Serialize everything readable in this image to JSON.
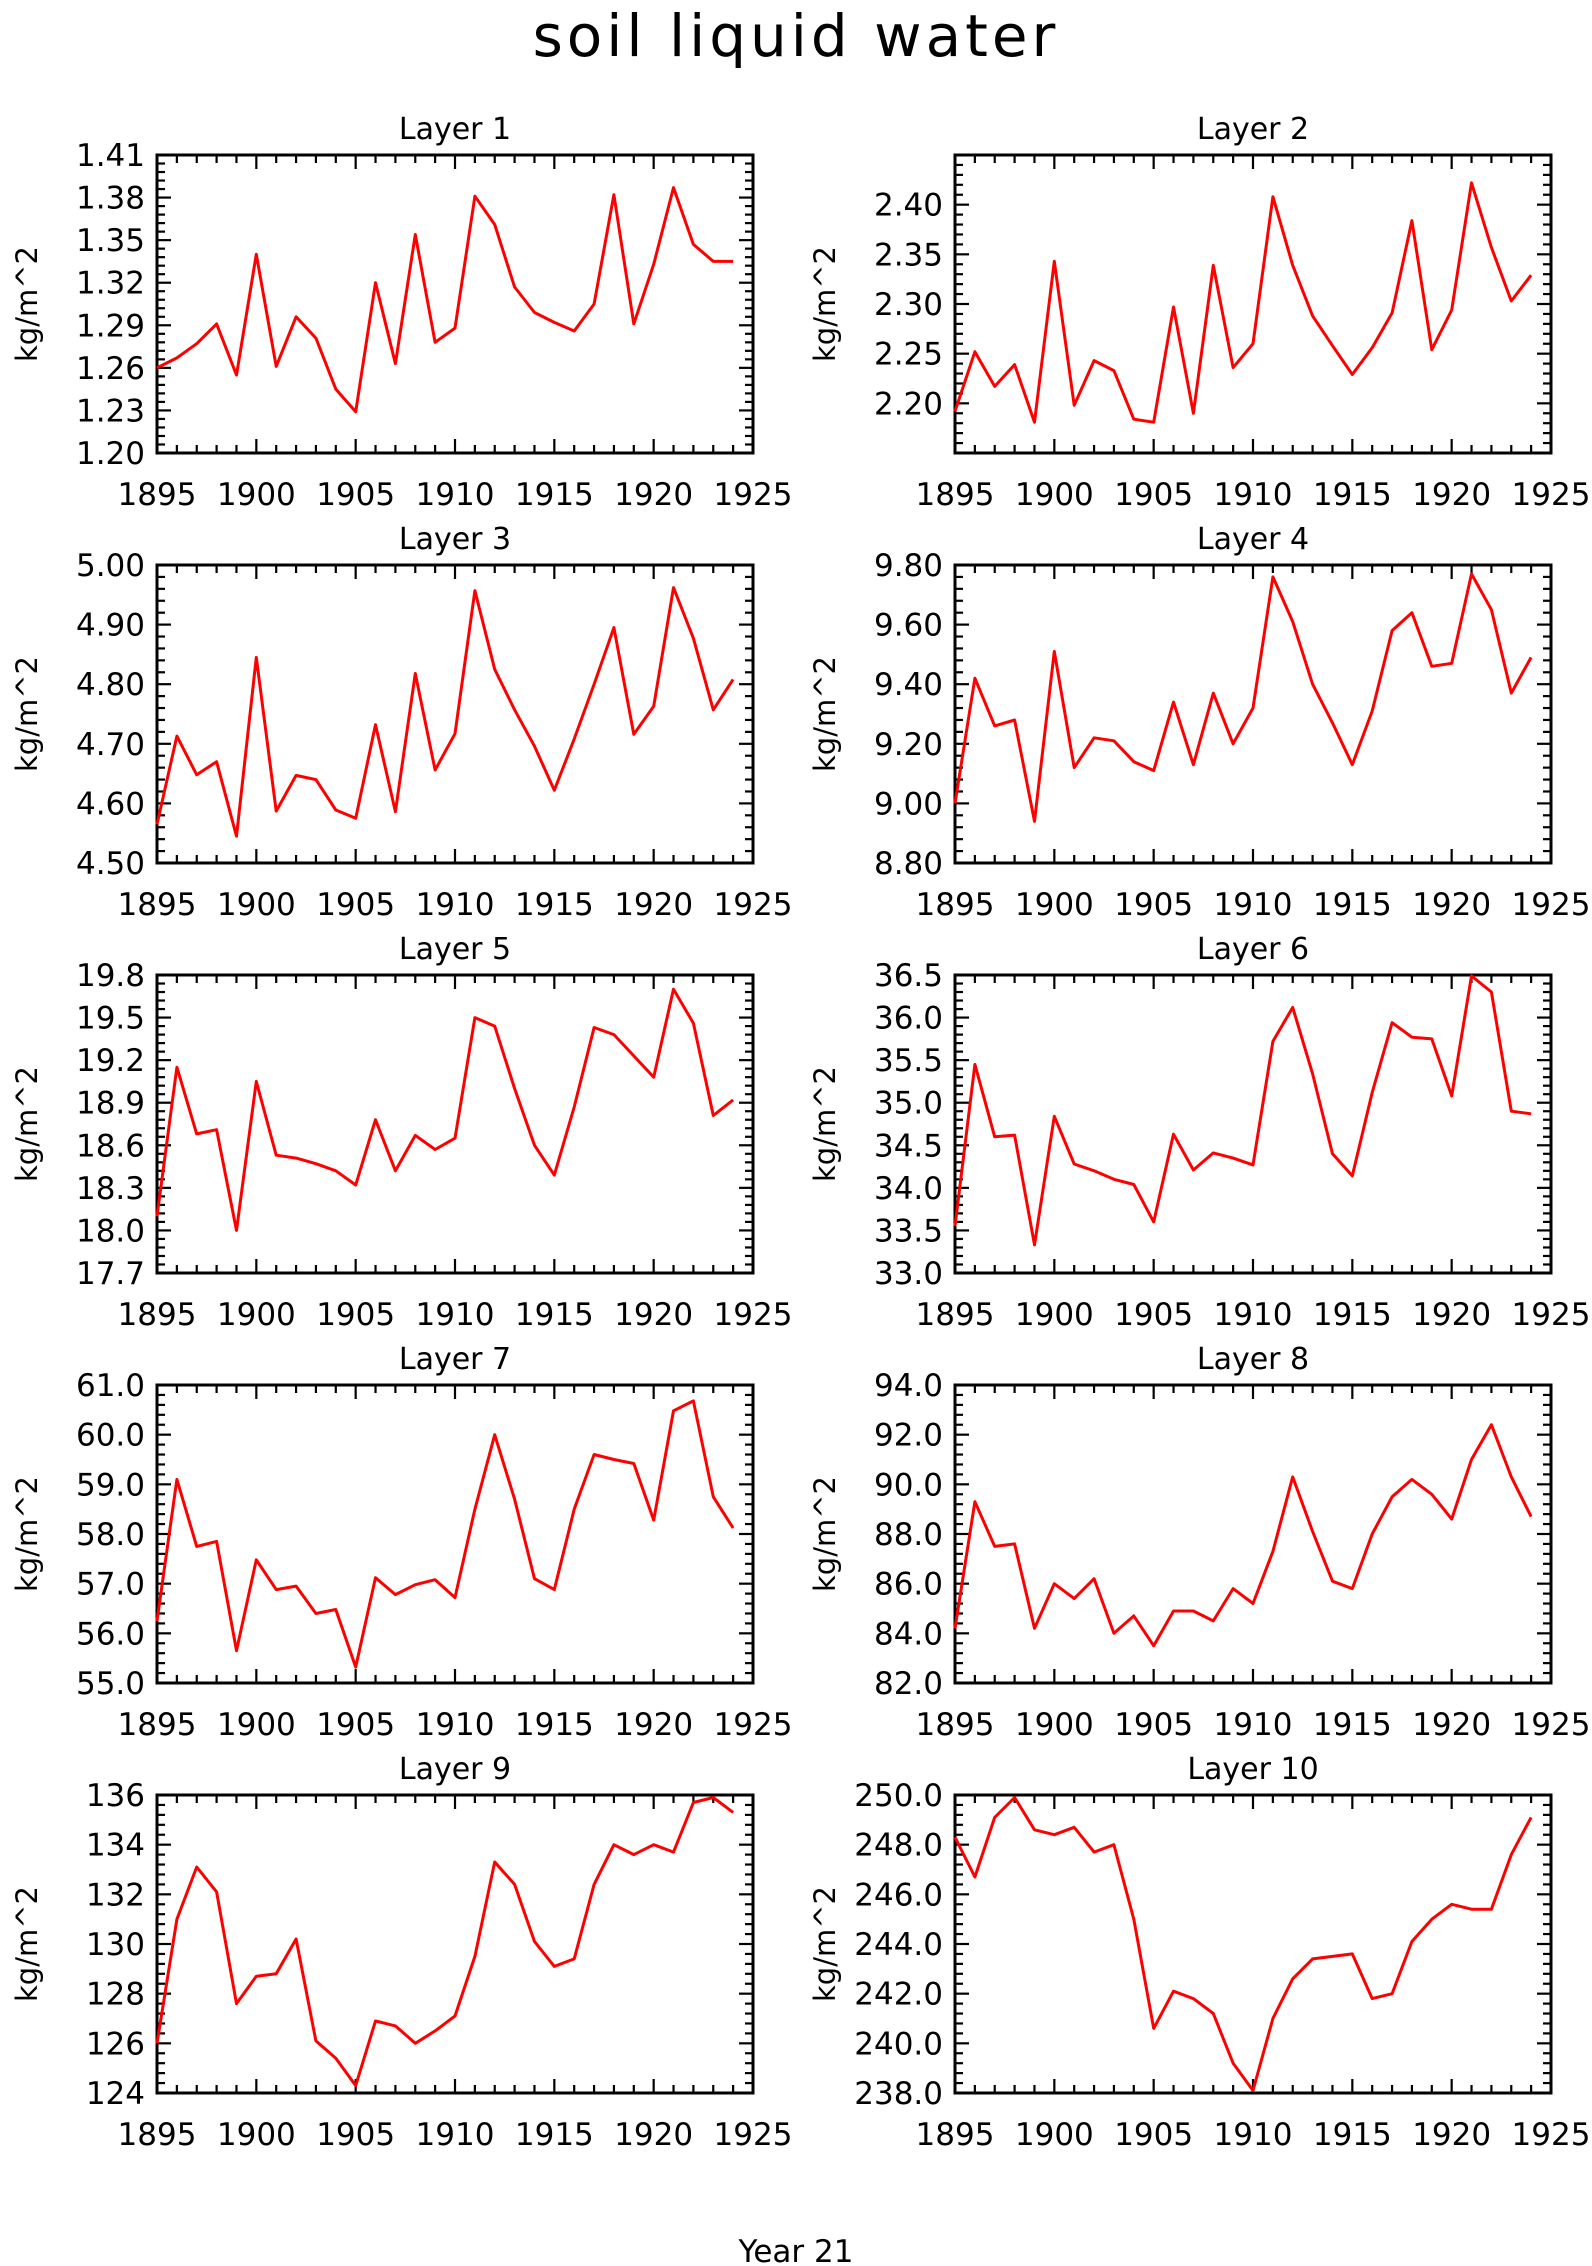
{
  "figure": {
    "title": "soil liquid water",
    "footer": "Year 21"
  },
  "chart_data": [
    {
      "type": "line",
      "title": "Layer 1",
      "ylabel": "kg/m^2",
      "x": [
        1895,
        1896,
        1897,
        1898,
        1899,
        1900,
        1901,
        1902,
        1903,
        1904,
        1905,
        1906,
        1907,
        1908,
        1909,
        1910,
        1911,
        1912,
        1913,
        1914,
        1915,
        1916,
        1917,
        1918,
        1919,
        1920,
        1921,
        1922,
        1923,
        1924
      ],
      "values": [
        1.26,
        1.267,
        1.277,
        1.291,
        1.255,
        1.34,
        1.261,
        1.296,
        1.281,
        1.245,
        1.229,
        1.32,
        1.263,
        1.354,
        1.278,
        1.288,
        1.381,
        1.361,
        1.317,
        1.299,
        1.292,
        1.286,
        1.305,
        1.382,
        1.291,
        1.333,
        1.387,
        1.347,
        1.335,
        1.335
      ],
      "xlim": [
        1895,
        1925
      ],
      "ylim": [
        1.2,
        1.41
      ],
      "xticks": [
        "1895",
        "1900",
        "1905",
        "1910",
        "1915",
        "1920",
        "1925"
      ],
      "yticks": [
        "1.20",
        "1.23",
        "1.26",
        "1.29",
        "1.32",
        "1.35",
        "1.38",
        "1.41"
      ]
    },
    {
      "type": "line",
      "title": "Layer 2",
      "ylabel": "kg/m^2",
      "x": [
        1895,
        1896,
        1897,
        1898,
        1899,
        1900,
        1901,
        1902,
        1903,
        1904,
        1905,
        1906,
        1907,
        1908,
        1909,
        1910,
        1911,
        1912,
        1913,
        1914,
        1915,
        1916,
        1917,
        1918,
        1919,
        1920,
        1921,
        1922,
        1923,
        1924
      ],
      "values": [
        2.192,
        2.252,
        2.217,
        2.239,
        2.181,
        2.343,
        2.198,
        2.243,
        2.233,
        2.184,
        2.181,
        2.297,
        2.19,
        2.339,
        2.236,
        2.26,
        2.408,
        2.339,
        2.288,
        2.258,
        2.229,
        2.256,
        2.291,
        2.384,
        2.254,
        2.294,
        2.422,
        2.357,
        2.303,
        2.329
      ],
      "xlim": [
        1895,
        1925
      ],
      "ylim": [
        2.15,
        2.45
      ],
      "xticks": [
        "1895",
        "1900",
        "1905",
        "1910",
        "1915",
        "1920",
        "1925"
      ],
      "yticks": [
        "2.20",
        "2.25",
        "2.30",
        "2.35",
        "2.40"
      ]
    },
    {
      "type": "line",
      "title": "Layer 3",
      "ylabel": "kg/m^2",
      "x": [
        1895,
        1896,
        1897,
        1898,
        1899,
        1900,
        1901,
        1902,
        1903,
        1904,
        1905,
        1906,
        1907,
        1908,
        1909,
        1910,
        1911,
        1912,
        1913,
        1914,
        1915,
        1916,
        1917,
        1918,
        1919,
        1920,
        1921,
        1922,
        1923,
        1924
      ],
      "values": [
        4.565,
        4.713,
        4.648,
        4.67,
        4.545,
        4.845,
        4.587,
        4.647,
        4.64,
        4.589,
        4.575,
        4.732,
        4.586,
        4.818,
        4.656,
        4.717,
        4.957,
        4.825,
        4.757,
        4.696,
        4.622,
        4.708,
        4.8,
        4.895,
        4.716,
        4.763,
        4.962,
        4.877,
        4.757,
        4.808
      ],
      "xlim": [
        1895,
        1925
      ],
      "ylim": [
        4.5,
        5.0
      ],
      "xticks": [
        "1895",
        "1900",
        "1905",
        "1910",
        "1915",
        "1920",
        "1925"
      ],
      "yticks": [
        "4.50",
        "4.60",
        "4.70",
        "4.80",
        "4.90",
        "5.00"
      ]
    },
    {
      "type": "line",
      "title": "Layer 4",
      "ylabel": "kg/m^2",
      "x": [
        1895,
        1896,
        1897,
        1898,
        1899,
        1900,
        1901,
        1902,
        1903,
        1904,
        1905,
        1906,
        1907,
        1908,
        1909,
        1910,
        1911,
        1912,
        1913,
        1914,
        1915,
        1916,
        1917,
        1918,
        1919,
        1920,
        1921,
        1922,
        1923,
        1924
      ],
      "values": [
        9.0,
        9.42,
        9.26,
        9.28,
        8.94,
        9.51,
        9.12,
        9.22,
        9.21,
        9.14,
        9.11,
        9.34,
        9.13,
        9.37,
        9.2,
        9.32,
        9.76,
        9.61,
        9.4,
        9.27,
        9.13,
        9.31,
        9.58,
        9.64,
        9.46,
        9.47,
        9.77,
        9.65,
        9.37,
        9.49
      ],
      "xlim": [
        1895,
        1925
      ],
      "ylim": [
        8.8,
        9.8
      ],
      "xticks": [
        "1895",
        "1900",
        "1905",
        "1910",
        "1915",
        "1920",
        "1925"
      ],
      "yticks": [
        "8.80",
        "9.00",
        "9.20",
        "9.40",
        "9.60",
        "9.80"
      ]
    },
    {
      "type": "line",
      "title": "Layer 5",
      "ylabel": "kg/m^2",
      "x": [
        1895,
        1896,
        1897,
        1898,
        1899,
        1900,
        1901,
        1902,
        1903,
        1904,
        1905,
        1906,
        1907,
        1908,
        1909,
        1910,
        1911,
        1912,
        1913,
        1914,
        1915,
        1916,
        1917,
        1918,
        1919,
        1920,
        1921,
        1922,
        1923,
        1924
      ],
      "values": [
        18.1,
        19.15,
        18.68,
        18.71,
        18.0,
        19.05,
        18.53,
        18.51,
        18.47,
        18.42,
        18.32,
        18.78,
        18.42,
        18.67,
        18.57,
        18.65,
        19.5,
        19.44,
        19.0,
        18.6,
        18.39,
        18.87,
        19.43,
        19.38,
        19.23,
        19.08,
        19.7,
        19.46,
        18.81,
        18.92
      ],
      "xlim": [
        1895,
        1925
      ],
      "ylim": [
        17.7,
        19.8
      ],
      "xticks": [
        "1895",
        "1900",
        "1905",
        "1910",
        "1915",
        "1920",
        "1925"
      ],
      "yticks": [
        "17.7",
        "18.0",
        "18.3",
        "18.6",
        "18.9",
        "19.2",
        "19.5",
        "19.8"
      ]
    },
    {
      "type": "line",
      "title": "Layer 6",
      "ylabel": "kg/m^2",
      "x": [
        1895,
        1896,
        1897,
        1898,
        1899,
        1900,
        1901,
        1902,
        1903,
        1904,
        1905,
        1906,
        1907,
        1908,
        1909,
        1910,
        1911,
        1912,
        1913,
        1914,
        1915,
        1916,
        1917,
        1918,
        1919,
        1920,
        1921,
        1922,
        1923,
        1924
      ],
      "values": [
        33.55,
        35.45,
        34.6,
        34.62,
        33.33,
        34.84,
        34.28,
        34.2,
        34.1,
        34.04,
        33.6,
        34.63,
        34.21,
        34.41,
        34.35,
        34.27,
        35.72,
        36.12,
        35.34,
        34.4,
        34.14,
        35.12,
        35.94,
        35.77,
        35.75,
        35.08,
        36.49,
        36.3,
        34.9,
        34.87
      ],
      "xlim": [
        1895,
        1925
      ],
      "ylim": [
        33.0,
        36.5
      ],
      "xticks": [
        "1895",
        "1900",
        "1905",
        "1910",
        "1915",
        "1920",
        "1925"
      ],
      "yticks": [
        "33.0",
        "33.5",
        "34.0",
        "34.5",
        "35.0",
        "35.5",
        "36.0",
        "36.5"
      ]
    },
    {
      "type": "line",
      "title": "Layer 7",
      "ylabel": "kg/m^2",
      "x": [
        1895,
        1896,
        1897,
        1898,
        1899,
        1900,
        1901,
        1902,
        1903,
        1904,
        1905,
        1906,
        1907,
        1908,
        1909,
        1910,
        1911,
        1912,
        1913,
        1914,
        1915,
        1916,
        1917,
        1918,
        1919,
        1920,
        1921,
        1922,
        1923,
        1924
      ],
      "values": [
        56.25,
        59.1,
        57.75,
        57.85,
        55.65,
        57.48,
        56.88,
        56.95,
        56.4,
        56.48,
        55.32,
        57.12,
        56.78,
        56.98,
        57.08,
        56.72,
        58.5,
        60.0,
        58.7,
        57.1,
        56.88,
        58.5,
        59.6,
        59.5,
        59.42,
        58.28,
        60.48,
        60.68,
        58.75,
        58.12
      ],
      "xlim": [
        1895,
        1925
      ],
      "ylim": [
        55.0,
        61.0
      ],
      "xticks": [
        "1895",
        "1900",
        "1905",
        "1910",
        "1915",
        "1920",
        "1925"
      ],
      "yticks": [
        "55.0",
        "56.0",
        "57.0",
        "58.0",
        "59.0",
        "60.0",
        "61.0"
      ]
    },
    {
      "type": "line",
      "title": "Layer 8",
      "ylabel": "kg/m^2",
      "x": [
        1895,
        1896,
        1897,
        1898,
        1899,
        1900,
        1901,
        1902,
        1903,
        1904,
        1905,
        1906,
        1907,
        1908,
        1909,
        1910,
        1911,
        1912,
        1913,
        1914,
        1915,
        1916,
        1917,
        1918,
        1919,
        1920,
        1921,
        1922,
        1923,
        1924
      ],
      "values": [
        84.2,
        89.3,
        87.5,
        87.6,
        84.2,
        86.0,
        85.4,
        86.2,
        84.0,
        84.7,
        83.5,
        84.9,
        84.9,
        84.5,
        85.8,
        85.2,
        87.3,
        90.3,
        88.1,
        86.1,
        85.8,
        88.0,
        89.5,
        90.2,
        89.6,
        88.6,
        91.0,
        92.4,
        90.3,
        88.7
      ],
      "xlim": [
        1895,
        1925
      ],
      "ylim": [
        82.0,
        94.0
      ],
      "xticks": [
        "1895",
        "1900",
        "1905",
        "1910",
        "1915",
        "1920",
        "1925"
      ],
      "yticks": [
        "82.0",
        "84.0",
        "86.0",
        "88.0",
        "90.0",
        "92.0",
        "94.0"
      ]
    },
    {
      "type": "line",
      "title": "Layer 9",
      "ylabel": "kg/m^2",
      "x": [
        1895,
        1896,
        1897,
        1898,
        1899,
        1900,
        1901,
        1902,
        1903,
        1904,
        1905,
        1906,
        1907,
        1908,
        1909,
        1910,
        1911,
        1912,
        1913,
        1914,
        1915,
        1916,
        1917,
        1918,
        1919,
        1920,
        1921,
        1922,
        1923,
        1924
      ],
      "values": [
        126.0,
        131.0,
        133.1,
        132.1,
        127.6,
        128.7,
        128.8,
        130.2,
        126.1,
        125.4,
        124.3,
        126.9,
        126.7,
        126.0,
        126.5,
        127.1,
        129.5,
        133.3,
        132.4,
        130.1,
        129.1,
        129.4,
        132.4,
        134.0,
        133.6,
        134.0,
        133.7,
        135.7,
        135.9,
        135.3
      ],
      "xlim": [
        1895,
        1925
      ],
      "ylim": [
        124,
        136
      ],
      "xticks": [
        "1895",
        "1900",
        "1905",
        "1910",
        "1915",
        "1920",
        "1925"
      ],
      "yticks": [
        "124",
        "126",
        "128",
        "130",
        "132",
        "134",
        "136"
      ]
    },
    {
      "type": "line",
      "title": "Layer 10",
      "ylabel": "kg/m^2",
      "x": [
        1895,
        1896,
        1897,
        1898,
        1899,
        1900,
        1901,
        1902,
        1903,
        1904,
        1905,
        1906,
        1907,
        1908,
        1909,
        1910,
        1911,
        1912,
        1913,
        1914,
        1915,
        1916,
        1917,
        1918,
        1919,
        1920,
        1921,
        1922,
        1923,
        1924
      ],
      "values": [
        248.3,
        246.7,
        249.1,
        249.9,
        248.6,
        248.4,
        248.7,
        247.7,
        248.0,
        245.0,
        240.6,
        242.1,
        241.8,
        241.2,
        239.2,
        238.1,
        241.0,
        242.6,
        243.4,
        243.5,
        243.6,
        241.8,
        242.0,
        244.1,
        245.0,
        245.6,
        245.4,
        245.4,
        247.6,
        249.1
      ],
      "xlim": [
        1895,
        1925
      ],
      "ylim": [
        238.0,
        250.0
      ],
      "xticks": [
        "1895",
        "1900",
        "1905",
        "1910",
        "1915",
        "1920",
        "1925"
      ],
      "yticks": [
        "238.0",
        "240.0",
        "242.0",
        "244.0",
        "246.0",
        "248.0",
        "250.0"
      ]
    }
  ]
}
